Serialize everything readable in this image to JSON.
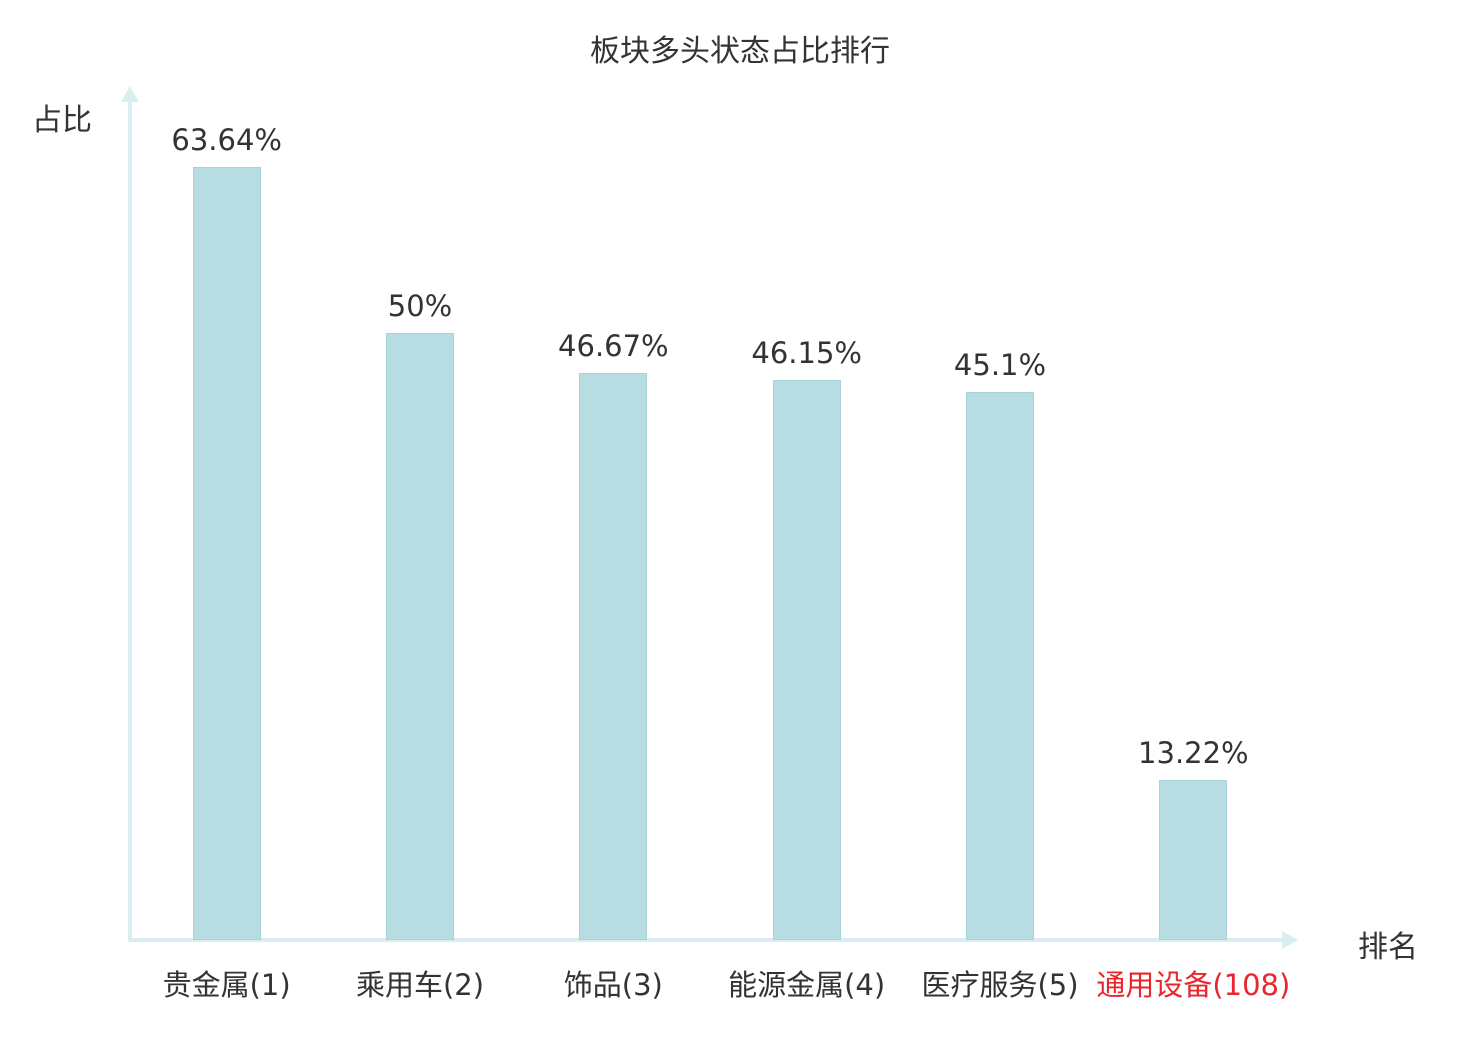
{
  "chart_data": {
    "type": "bar",
    "title": "板块多头状态占比排行",
    "xlabel": "排名",
    "ylabel": "占比",
    "categories": [
      "贵金属(1)",
      "乘用车(2)",
      "饰品(3)",
      "能源金属(4)",
      "医疗服务(5)",
      "通用设备(108)"
    ],
    "values": [
      63.64,
      50,
      46.67,
      46.15,
      45.1,
      13.22
    ],
    "value_labels": [
      "63.64%",
      "50%",
      "46.67%",
      "46.15%",
      "45.1%",
      "13.22%"
    ],
    "ylim": [
      0,
      70
    ],
    "grid": false,
    "legend": "none",
    "highlight_index": 5,
    "highlight_color": "#e8262c",
    "bar_color": "#b7dde2",
    "bar_border_color": "#a6d2d9",
    "axis_color": "#d8eef0",
    "text_color": "#333333"
  }
}
